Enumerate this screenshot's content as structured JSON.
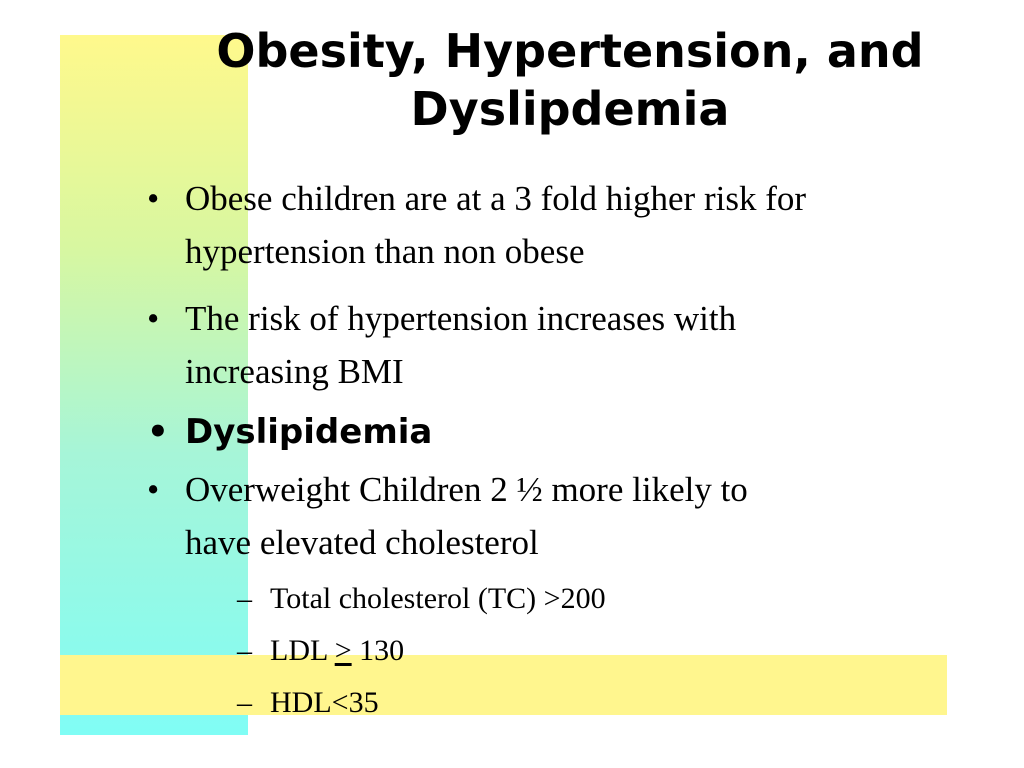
{
  "slide": {
    "title_line1": "Obesity, Hypertension, and",
    "title_line2": "Dyslipdemia",
    "bullets": [
      {
        "text_line1": "Obese children are at a 3 fold higher risk for",
        "text_line2": "hypertension than non obese"
      },
      {
        "text_line1": "The risk of hypertension increases with",
        "text_line2": "increasing BMI"
      },
      {
        "text": "Dyslipidemia"
      },
      {
        "text_line1": "Overweight Children 2 ½ more likely to",
        "text_line2": "have elevated cholesterol"
      }
    ],
    "sub_bullets": [
      {
        "text": "Total cholesterol (TC) >200"
      },
      {
        "prefix": "LDL ",
        "symbol": ">",
        "suffix": " 130"
      },
      {
        "text": "HDL<35"
      }
    ],
    "bullet_marker": "•",
    "sub_marker": "–"
  },
  "colors": {
    "vertical_bar_top": "#fff98c",
    "vertical_bar_bottom": "#80fdf5",
    "horizontal_bar": "#fff68e"
  }
}
